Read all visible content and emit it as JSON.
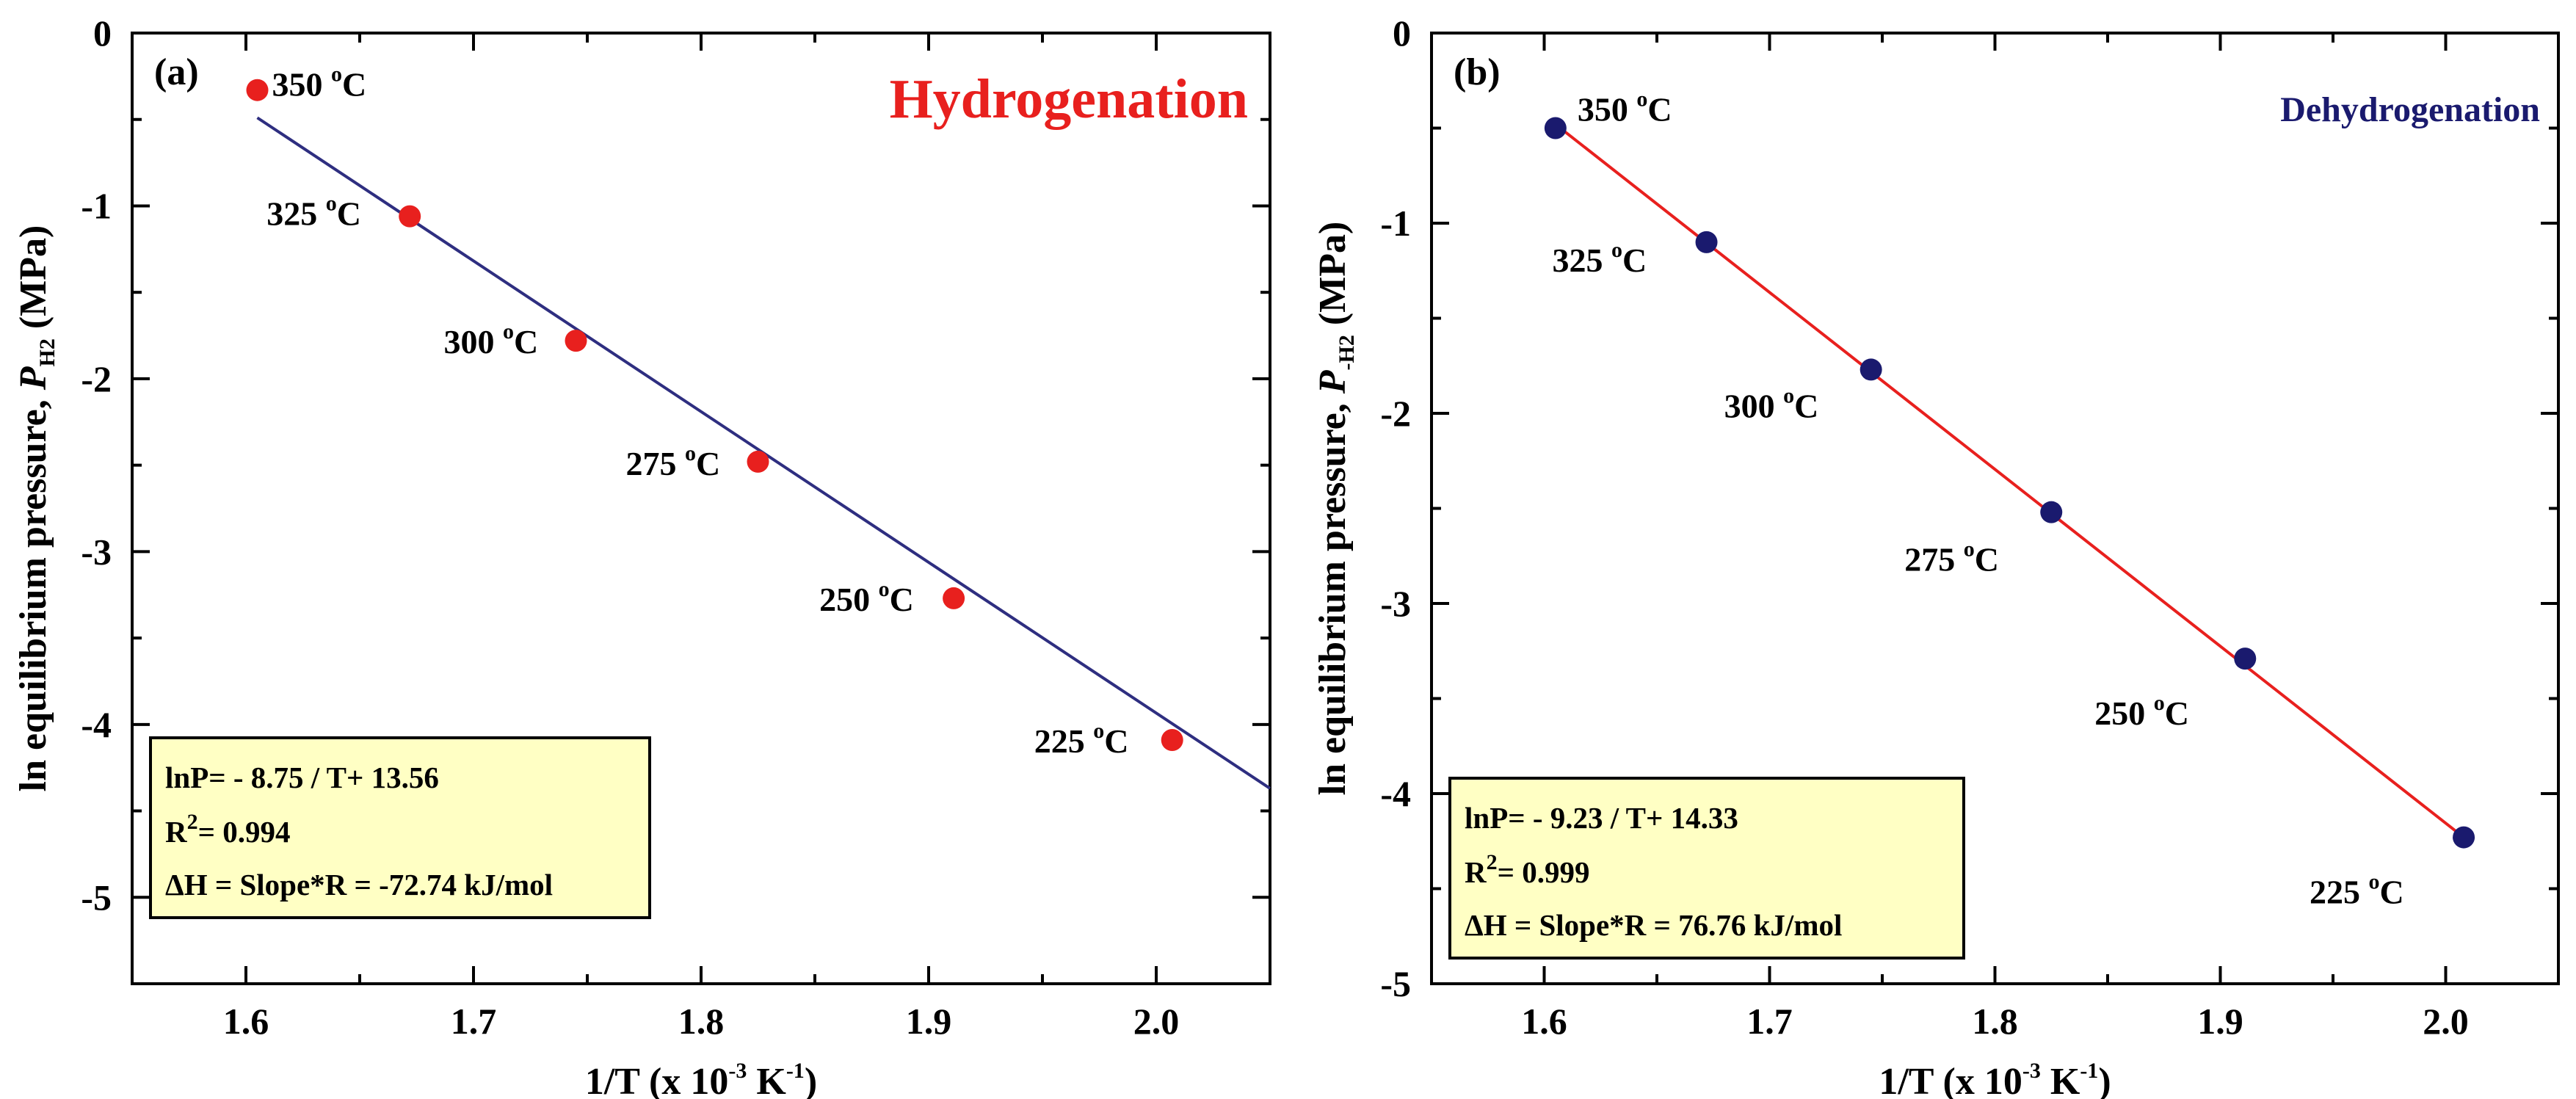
{
  "chart_data": [
    {
      "type": "scatter",
      "id": "a",
      "panel_label": "(a)",
      "title": "Hydrogenation",
      "title_color": "#e8201e",
      "xlabel": "1/T (x 10",
      "xlabel_sup": "-3",
      "xlabel_unit": " K",
      "xlabel_unit_sup": "-1",
      "xlabel_end": ")",
      "ylabel": "ln equilibrium pressure, ",
      "ylabel_var": "P",
      "ylabel_sub": "H2",
      "ylabel_end": " (MPa)",
      "xlim": [
        1.55,
        2.05
      ],
      "ylim": [
        -5.5,
        0
      ],
      "xticks": [
        1.6,
        1.7,
        1.8,
        1.9,
        2.0
      ],
      "xtick_labels": [
        "1.6",
        "1.7",
        "1.8",
        "1.9",
        "2.0"
      ],
      "yticks": [
        0,
        -1,
        -2,
        -3,
        -4,
        -5
      ],
      "ytick_labels": [
        "0",
        "-1",
        "-2",
        "-3",
        "-4",
        "-5"
      ],
      "marker_color": "#e8201e",
      "line_color": "#2e2e80",
      "x": [
        1.605,
        1.672,
        1.745,
        1.825,
        1.911,
        2.007
      ],
      "y": [
        -0.33,
        -1.06,
        -1.78,
        -2.48,
        -3.27,
        -4.09
      ],
      "point_labels": [
        "350 ",
        "325 ",
        "300 ",
        "275 ",
        "250 ",
        "225 "
      ],
      "point_label_sup": "o",
      "point_label_unit": "C",
      "fit": {
        "x": [
          1.605,
          2.05
        ],
        "y": [
          -0.49,
          -4.37
        ]
      },
      "equation_box": {
        "line1": "lnP= - 8.75 / T+ 13.56",
        "line2_a": "R",
        "line2_sup": "2",
        "line2_b": "= 0.994",
        "line3": "ΔH = Slope*R = -72.74 kJ/mol"
      }
    },
    {
      "type": "scatter",
      "id": "b",
      "panel_label": "(b)",
      "title": "Dehydrogenation",
      "title_color": "#1a1a6e",
      "xlabel": "1/T (x 10",
      "xlabel_sup": "-3",
      "xlabel_unit": " K",
      "xlabel_unit_sup": "-1",
      "xlabel_end": ")",
      "ylabel": "ln equilibrium pressure, ",
      "ylabel_var": "P",
      "ylabel_sub": "-H2",
      "ylabel_end": " (MPa)",
      "xlim": [
        1.55,
        2.05
      ],
      "ylim": [
        -5,
        0
      ],
      "xticks": [
        1.6,
        1.7,
        1.8,
        1.9,
        2.0
      ],
      "xtick_labels": [
        "1.6",
        "1.7",
        "1.8",
        "1.9",
        "2.0"
      ],
      "yticks": [
        0,
        -1,
        -2,
        -3,
        -4,
        -5
      ],
      "ytick_labels": [
        "0",
        "-1",
        "-2",
        "-3",
        "-4",
        "-5"
      ],
      "marker_color": "#1a1a6e",
      "line_color": "#e8201e",
      "x": [
        1.605,
        1.672,
        1.745,
        1.825,
        1.911,
        2.008
      ],
      "y": [
        -0.5,
        -1.1,
        -1.77,
        -2.52,
        -3.29,
        -4.23
      ],
      "point_labels": [
        "350 ",
        "325 ",
        "300 ",
        "275 ",
        "250 ",
        "225 "
      ],
      "point_label_sup": "o",
      "point_label_unit": "C",
      "fit": {
        "x": [
          1.605,
          2.008
        ],
        "y": [
          -0.48,
          -4.23
        ]
      },
      "equation_box": {
        "line1": "lnP= - 9.23 / T+ 14.33",
        "line2_a": "R",
        "line2_sup": "2",
        "line2_b": "= 0.999",
        "line3": "ΔH = Slope*R =  76.76 kJ/mol"
      }
    }
  ]
}
